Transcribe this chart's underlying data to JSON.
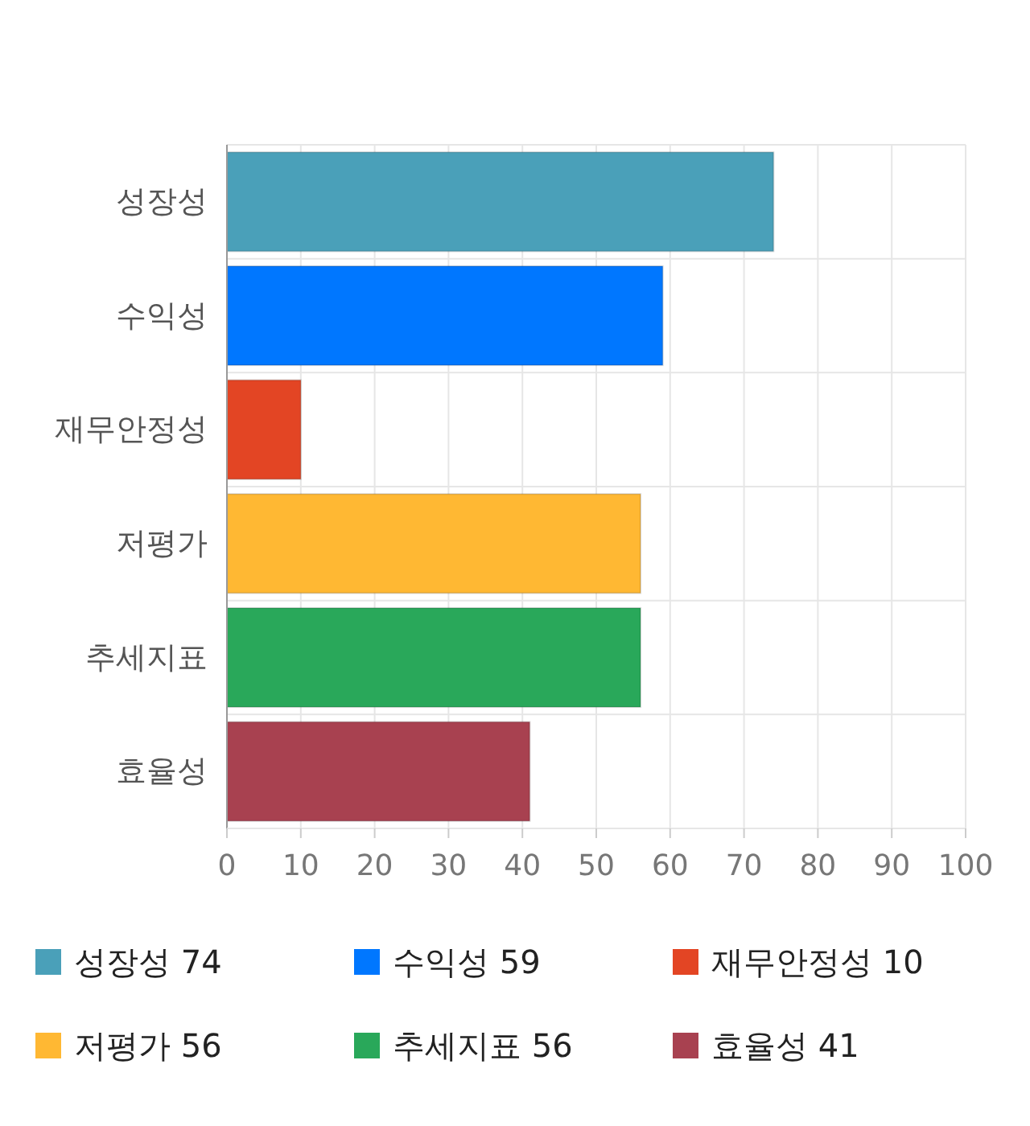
{
  "chart_data": {
    "type": "bar",
    "orientation": "horizontal",
    "categories": [
      "성장성",
      "수익성",
      "재무안정성",
      "저평가",
      "추세지표",
      "효율성"
    ],
    "series": [
      {
        "name": "성장성 74",
        "color": "#4aa0b9",
        "values": [
          74,
          null,
          null,
          null,
          null,
          null
        ]
      },
      {
        "name": "수익성 59",
        "color": "#0077ff",
        "values": [
          null,
          59,
          null,
          null,
          null,
          null
        ]
      },
      {
        "name": "재무안정성 10",
        "color": "#e34524",
        "values": [
          null,
          null,
          10,
          null,
          null,
          null
        ]
      },
      {
        "name": "저평가 56",
        "color": "#ffb833",
        "values": [
          null,
          null,
          null,
          56,
          null,
          null
        ]
      },
      {
        "name": "추세지표 56",
        "color": "#29a85a",
        "values": [
          null,
          null,
          null,
          null,
          56,
          null
        ]
      },
      {
        "name": "효율성 41",
        "color": "#a84150",
        "values": [
          null,
          null,
          null,
          null,
          null,
          41
        ]
      }
    ],
    "xlim": [
      0,
      100
    ],
    "xticks": [
      0,
      10,
      20,
      30,
      40,
      50,
      60,
      70,
      80,
      90,
      100
    ],
    "grid": true,
    "legend": "bottom"
  }
}
